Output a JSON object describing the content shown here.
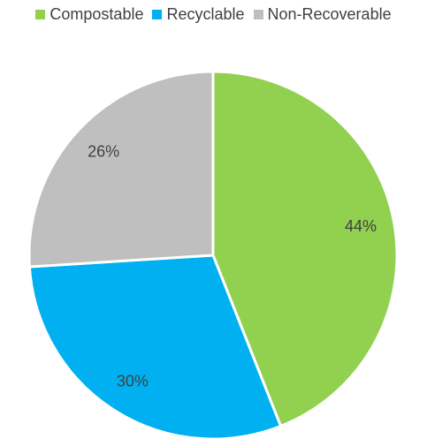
{
  "chart_data": {
    "type": "pie",
    "title": "",
    "categories": [
      "Compostable",
      "Recyclable",
      "Non-Recoverable"
    ],
    "values": [
      44,
      30,
      26
    ],
    "labels": [
      "44%",
      "30%",
      "26%"
    ],
    "colors": [
      "#92d050",
      "#00b0f0",
      "#bfbfbf"
    ],
    "legend_position": "top",
    "start_angle": "12 o'clock",
    "direction": "clockwise",
    "unit": "%"
  }
}
